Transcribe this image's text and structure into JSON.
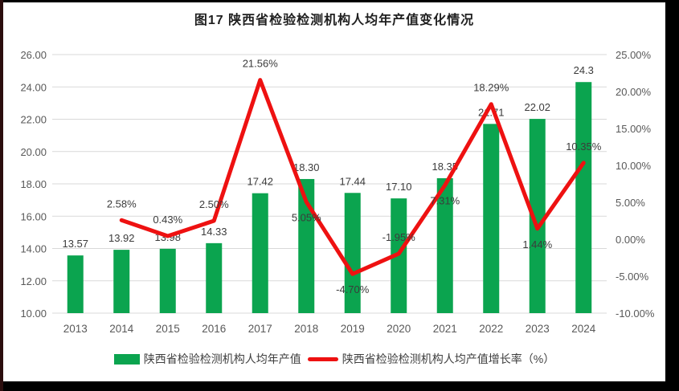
{
  "title": "图17  陕西省检验检测机构人均年产值变化情况",
  "legend": [
    {
      "label": "陕西省检验检测机构人均年产值",
      "color": "#0ba44f",
      "type": "bar"
    },
    {
      "label": "陕西省检验检测机构人均产值增长率（%）",
      "color": "#ee1111",
      "type": "line"
    }
  ],
  "chart_data": {
    "type": "bar",
    "subtype": "bar-line-combo",
    "title": "图17  陕西省检验检测机构人均年产值变化情况",
    "categories": [
      "2013",
      "2014",
      "2015",
      "2016",
      "2017",
      "2018",
      "2019",
      "2020",
      "2021",
      "2022",
      "2023",
      "2024"
    ],
    "series": [
      {
        "name": "陕西省检验检测机构人均年产值",
        "type": "bar",
        "axis": "left",
        "color": "#0ba44f",
        "values": [
          13.57,
          13.92,
          13.98,
          14.33,
          17.42,
          18.3,
          17.44,
          17.1,
          18.35,
          21.71,
          22.02,
          24.3
        ],
        "labels": [
          "13.57",
          "13.92",
          "13.98",
          "14.33",
          "17.42",
          "18.30",
          "17.44",
          "17.10",
          "18.35",
          "21.71",
          "22.02",
          "24.3"
        ]
      },
      {
        "name": "陕西省检验检测机构人均产值增长率（%）",
        "type": "line",
        "axis": "right",
        "color": "#ee1111",
        "values": [
          null,
          2.58,
          0.43,
          2.5,
          21.56,
          5.05,
          -4.7,
          -1.95,
          7.31,
          18.29,
          1.44,
          10.35
        ],
        "labels": [
          null,
          "2.58%",
          "0.43%",
          "2.50%",
          "21.56%",
          "5.05%",
          "-4.70%",
          "-1.95%",
          "7.31%",
          "18.29%",
          "1.44%",
          "10.35%"
        ],
        "label_side": [
          null,
          "above",
          "above",
          "above",
          "above",
          "below",
          "below",
          "above",
          "below",
          "above",
          "below",
          "above"
        ]
      }
    ],
    "left_axis": {
      "min": 10,
      "max": 26,
      "step": 2,
      "tick_labels": [
        "26.00",
        "24.00",
        "22.00",
        "20.00",
        "18.00",
        "16.00",
        "14.00",
        "12.00",
        "10.00"
      ]
    },
    "right_axis": {
      "min": -10,
      "max": 25,
      "step": 5,
      "tick_labels": [
        "25.00%",
        "20.00%",
        "15.00%",
        "10.00%",
        "5.00%",
        "0.00%",
        "-5.00%",
        "-10.00%"
      ]
    },
    "grid": true,
    "legend_position": "bottom",
    "colors": {
      "grid": "#d9d9d9",
      "axis_text": "#595959",
      "data_label": "#3b3b3b",
      "background": "#ffffff"
    }
  }
}
